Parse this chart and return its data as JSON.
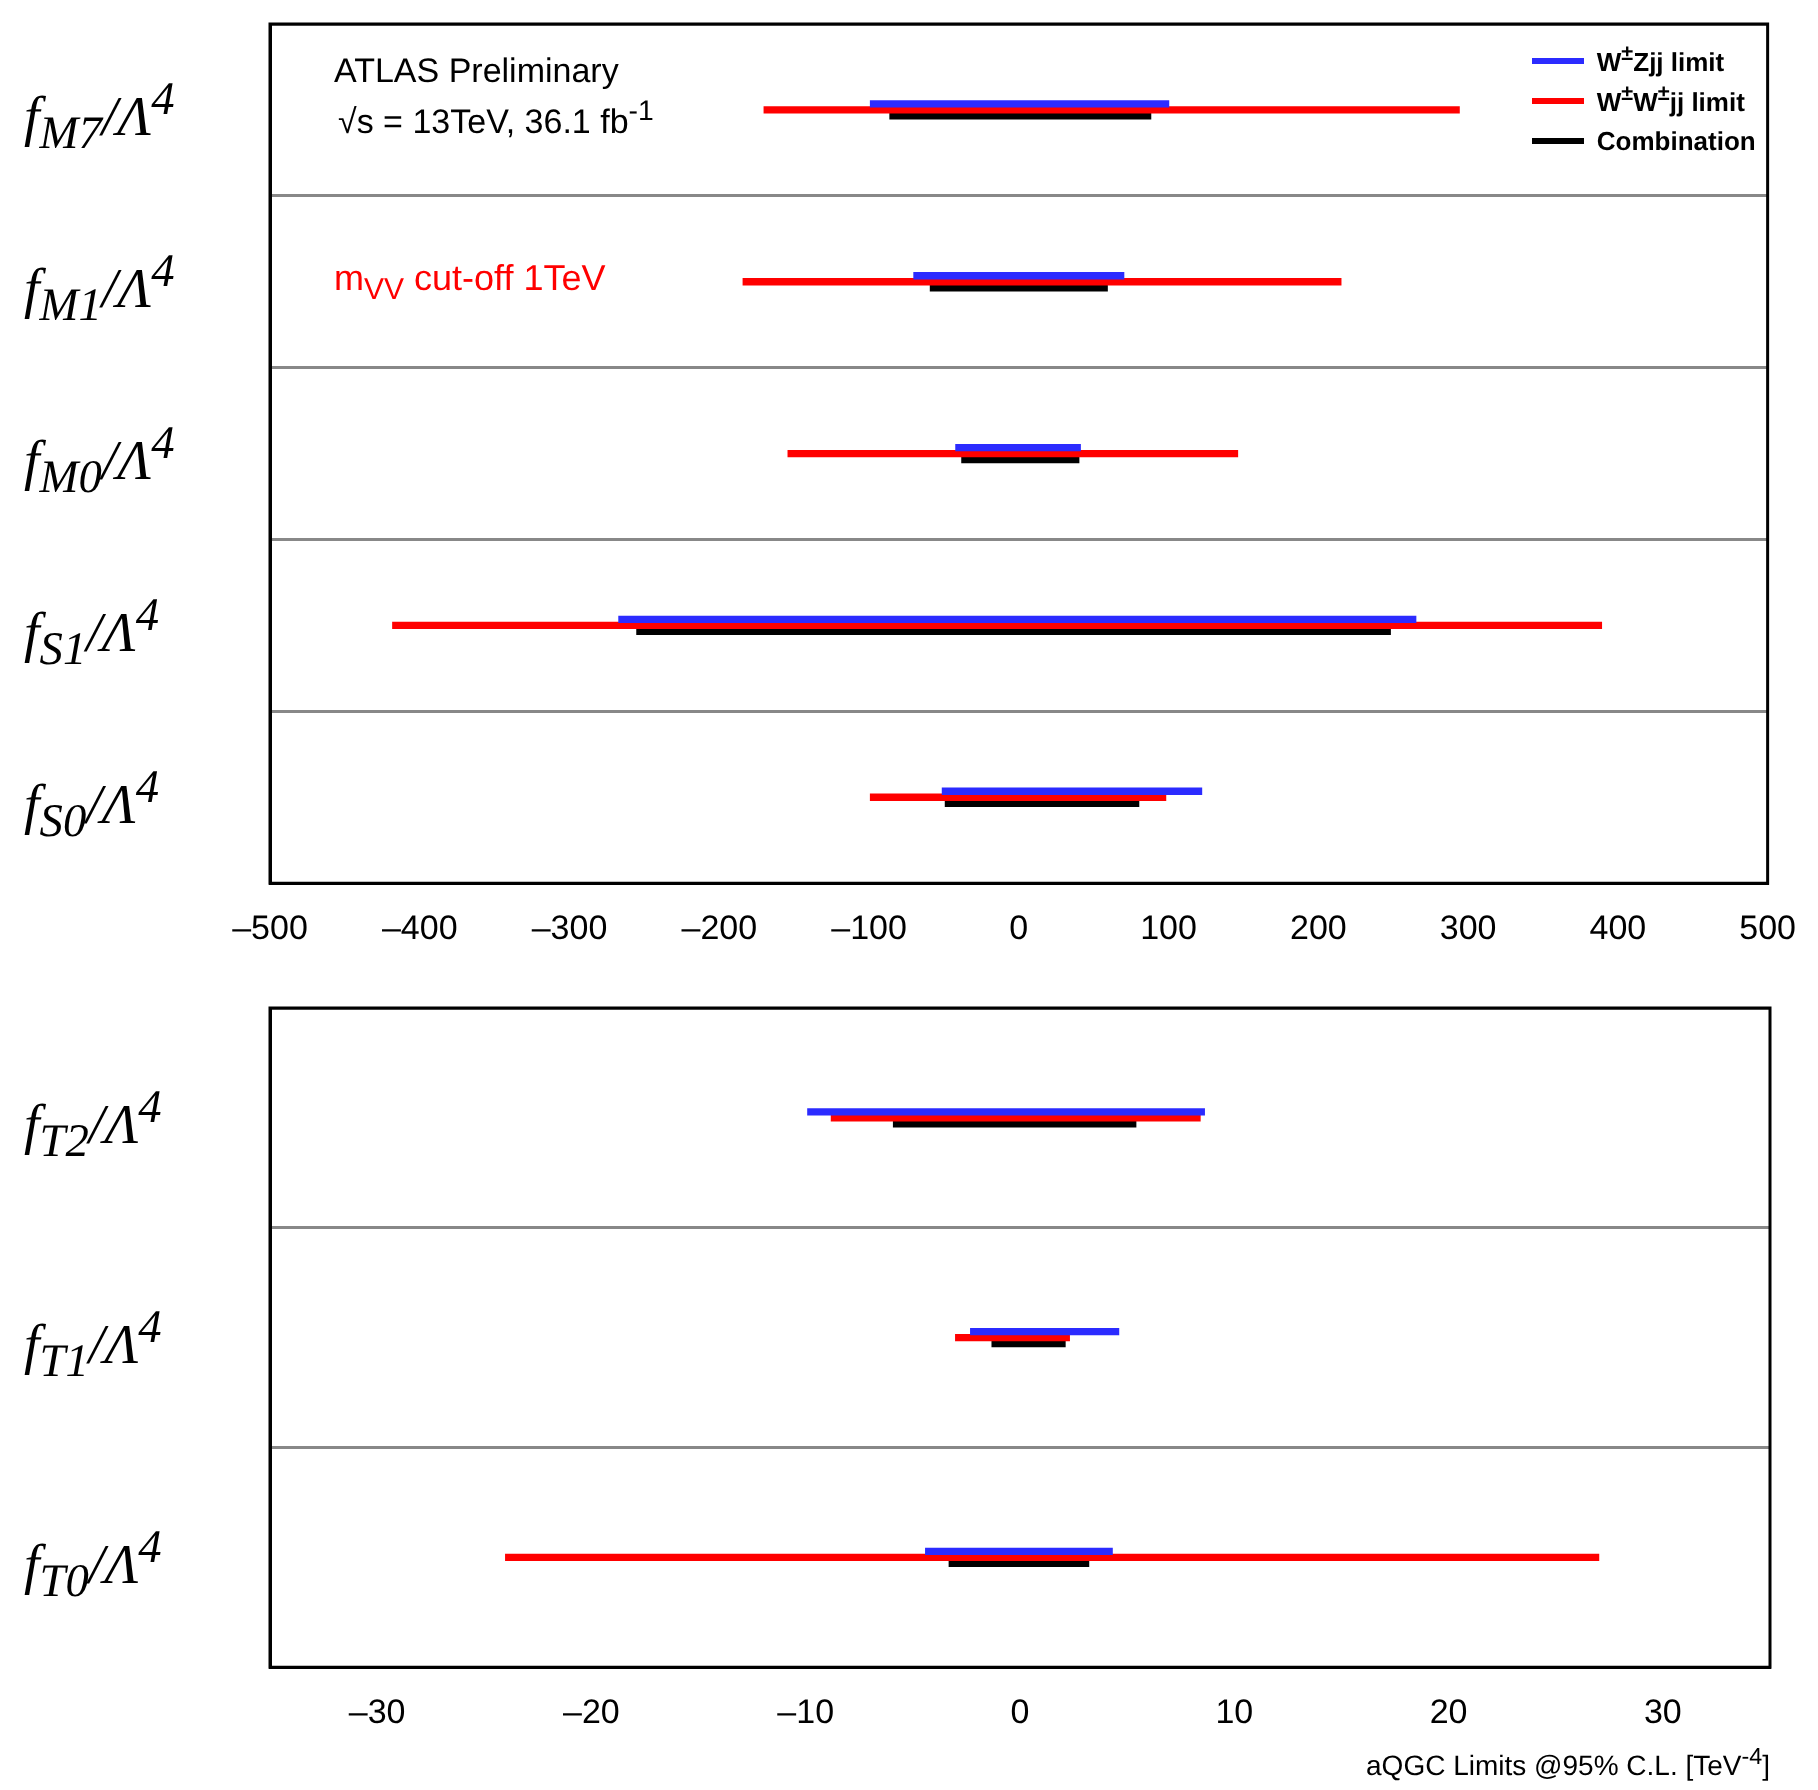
{
  "chart_data": [
    {
      "type": "bar",
      "orientation": "horizontal",
      "categories": [
        "f$_{M7}$/Λ$^{4}$",
        "f$_{M1}$/Λ$^{4}$",
        "f$_{M0}$/Λ$^{4}$",
        "f$_{S1}$/Λ$^{4}$",
        "f$_{S0}$/Λ$^{4}$"
      ],
      "series": [
        {
          "name": "W$^{±}$Zjj limit",
          "color": "#2b2bff",
          "base": [
            -99,
            -70,
            -42,
            -267,
            -51
          ],
          "values": [
            199,
            140,
            83,
            532,
            173
          ]
        },
        {
          "name": "W$^{±}$W$^{±}$jj limit",
          "color": "#ff0000",
          "base": [
            -170,
            -184,
            -154,
            -418,
            -99
          ],
          "values": [
            464,
            399,
            300,
            807,
            197
          ]
        },
        {
          "name": "Combination",
          "color": "#000000",
          "base": [
            -86,
            -59,
            -38,
            -255,
            -49
          ],
          "values": [
            174,
            118,
            78,
            503,
            129
          ]
        }
      ],
      "xlim": [
        -500,
        500
      ],
      "xticks": [
        {
          "value": -500,
          "label": "–500"
        },
        {
          "value": -400,
          "label": "–400"
        },
        {
          "value": -300,
          "label": "–300"
        },
        {
          "value": -200,
          "label": "–200"
        },
        {
          "value": -100,
          "label": "–100"
        },
        0,
        100,
        200,
        300,
        400,
        500
      ],
      "grid": "y",
      "legend": "top right",
      "annotations": [
        "ATLAS Preliminary",
        "√s = 13TeV, 36.1 fb$^{-1}$",
        "m$_{VV}$ cut-off 1TeV"
      ]
    },
    {
      "type": "bar",
      "orientation": "horizontal",
      "categories": [
        "f$_{T2}$/Λ$^{4}$",
        "f$_{T1}$/Λ$^{4}$",
        "f$_{T0}$/Λ$^{4}$"
      ],
      "series": [
        {
          "color": "#2b2bff",
          "base": [
            -9.9,
            -2.3,
            -4.4
          ],
          "values": [
            18.5,
            6.9,
            8.7
          ]
        },
        {
          "color": "#ff0000",
          "base": [
            -8.8,
            -3.0,
            -24.0
          ],
          "values": [
            17.2,
            5.3,
            51.0
          ]
        },
        {
          "color": "#000000",
          "base": [
            -5.9,
            -1.3,
            -3.3
          ],
          "values": [
            11.3,
            3.4,
            6.5
          ]
        }
      ],
      "xlim": [
        -35,
        35
      ],
      "xticks": [
        {
          "value": -30,
          "label": "–30"
        },
        {
          "value": -20,
          "label": "–20"
        },
        {
          "value": -10,
          "label": "–10"
        },
        0,
        10,
        20,
        30
      ],
      "grid": "y",
      "xlabel": "aQGC Limits @95% C.L. [TeV$^{-4}$]"
    }
  ]
}
